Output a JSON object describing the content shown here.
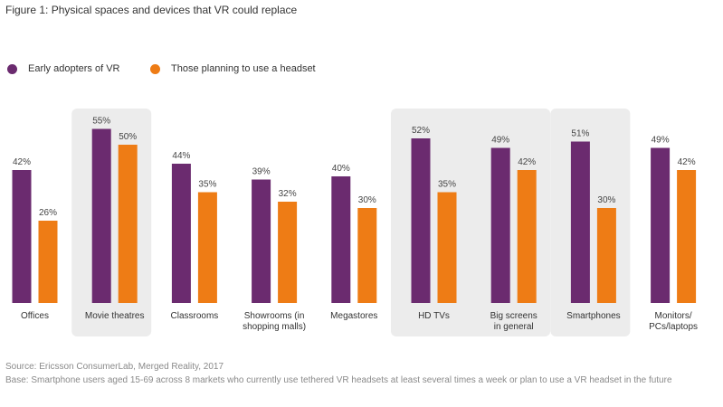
{
  "title": "Figure 1: Physical spaces and devices that VR could replace",
  "legend": [
    {
      "label": "Early adopters of VR",
      "color": "#6b2b6f"
    },
    {
      "label": "Those planning to use a headset",
      "color": "#ee7c15"
    }
  ],
  "highlight_color": "#ececec",
  "footer": {
    "source": "Source: Ericsson ConsumerLab, Merged Reality, 2017",
    "base": "Base: Smartphone users aged 15-69 across 8 markets  who currently use tethered VR headsets at least several times a week or plan to use a VR headset in the future"
  },
  "chart_data": {
    "type": "bar",
    "title": "Figure 1: Physical spaces and devices that VR could replace",
    "categories": [
      "Offices",
      "Movie theatres",
      "Classrooms",
      "Showrooms (in shopping malls)",
      "Megastores",
      "HD TVs",
      "Big screens in general",
      "Smartphones",
      "Monitors/ PCs/laptops"
    ],
    "category_lines": [
      [
        "Offices"
      ],
      [
        "Movie theatres"
      ],
      [
        "Classrooms"
      ],
      [
        "Showrooms (in",
        "shopping malls)"
      ],
      [
        "Megastores"
      ],
      [
        "HD TVs"
      ],
      [
        "Big screens",
        "in general"
      ],
      [
        "Smartphones"
      ],
      [
        "Monitors/",
        "PCs/laptops"
      ]
    ],
    "series": [
      {
        "name": "Early adopters of VR",
        "values": [
          42,
          55,
          44,
          39,
          40,
          52,
          49,
          51,
          49
        ],
        "color": "#6b2b6f"
      },
      {
        "name": "Those planning to use a headset",
        "values": [
          26,
          50,
          35,
          32,
          30,
          35,
          42,
          30,
          42
        ],
        "color": "#ee7c15"
      }
    ],
    "value_suffix": "%",
    "ylim": [
      0,
      60
    ],
    "highlighted_groups": [
      [
        1,
        1
      ],
      [
        5,
        6
      ],
      [
        7,
        7
      ]
    ],
    "legend_position": "top-left",
    "grid": false
  }
}
